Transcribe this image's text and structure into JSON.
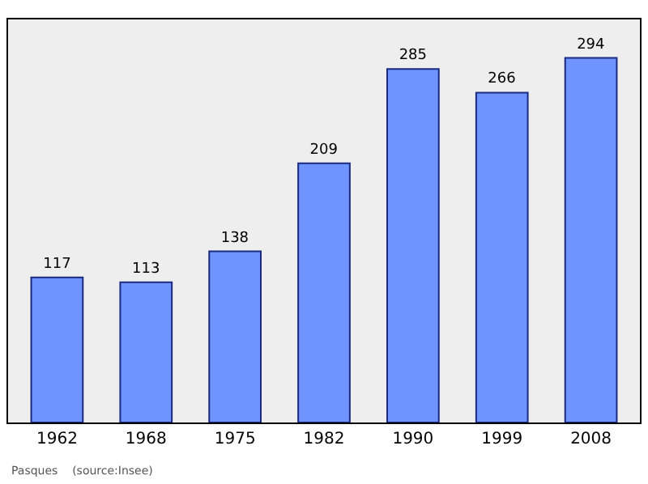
{
  "chart_data": {
    "type": "bar",
    "categories": [
      "1962",
      "1968",
      "1975",
      "1982",
      "1990",
      "1999",
      "2008"
    ],
    "values": [
      117,
      113,
      138,
      209,
      285,
      266,
      294
    ],
    "color": "#7094ff",
    "ylim": [
      0,
      325
    ],
    "data_labels": true,
    "grid": false,
    "legend": false,
    "annotations": [
      "Pasques    (source:Insee)"
    ]
  }
}
